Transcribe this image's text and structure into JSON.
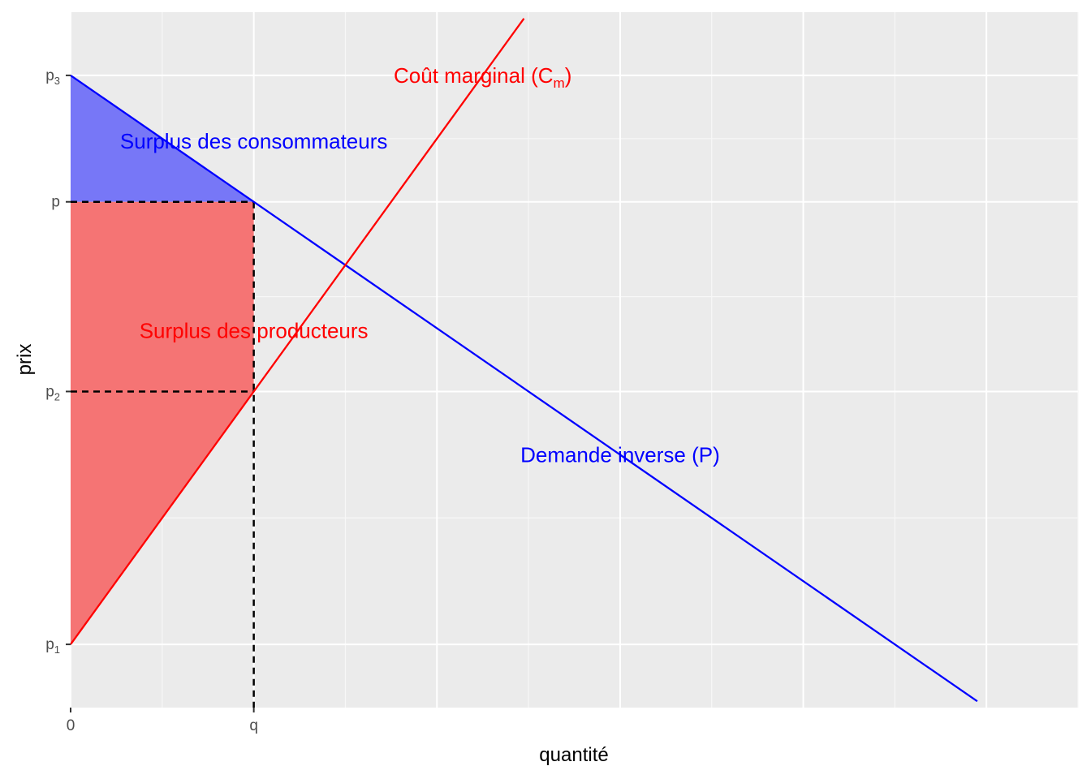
{
  "chart_data": {
    "type": "line",
    "xlabel": "quantité",
    "ylabel": "prix",
    "xlim": [
      0,
      5.5
    ],
    "ylim": [
      -0.5,
      5.0
    ],
    "grid": true,
    "legend": "none",
    "x_ticks": [
      {
        "value": 0,
        "label": "0"
      },
      {
        "value": 1,
        "label": "q"
      }
    ],
    "y_ticks": [
      {
        "value": 0,
        "label": "p",
        "sub": "1"
      },
      {
        "value": 2,
        "label": "p",
        "sub": "2"
      },
      {
        "value": 3.5,
        "label": "p",
        "sub": ""
      },
      {
        "value": 4.5,
        "label": "p",
        "sub": "3"
      }
    ],
    "series": [
      {
        "name": "Demande inverse (P)",
        "color": "#0000FF",
        "x": [
          0,
          4.95
        ],
        "y": [
          4.5,
          -0.45
        ]
      },
      {
        "name": "Coût marginal (C_m)",
        "color": "#FF0000",
        "x": [
          0,
          2.475
        ],
        "y": [
          0,
          4.95
        ]
      }
    ],
    "areas": [
      {
        "label": "Surplus des consommateurs",
        "color": "#7777F7",
        "polygon": [
          [
            0,
            4.5
          ],
          [
            1,
            3.5
          ],
          [
            0,
            3.5
          ]
        ]
      },
      {
        "label": "Surplus des producteurs",
        "color": "#F57474",
        "polygon": [
          [
            0,
            3.5
          ],
          [
            1,
            3.5
          ],
          [
            1,
            2
          ],
          [
            0,
            0
          ]
        ]
      }
    ],
    "guides": [
      {
        "from": [
          0,
          3.5
        ],
        "to": [
          1,
          3.5
        ]
      },
      {
        "from": [
          0,
          2
        ],
        "to": [
          1,
          2
        ]
      },
      {
        "from": [
          1,
          3.5
        ],
        "to": [
          1,
          -0.5
        ]
      }
    ],
    "annotations": [
      {
        "text": "Coût marginal (C",
        "sub": "m",
        "tail": ")",
        "x": 2.25,
        "y": 4.5,
        "color": "#FF0000"
      },
      {
        "text": "Surplus des consommateurs",
        "sub": "",
        "tail": "",
        "x": 1.0,
        "y": 3.98,
        "color": "#0000FF"
      },
      {
        "text": "Surplus des producteurs",
        "sub": "",
        "tail": "",
        "x": 1.0,
        "y": 2.48,
        "color": "#FF0000"
      },
      {
        "text": "Demande inverse (P)",
        "sub": "",
        "tail": "",
        "x": 3.0,
        "y": 1.5,
        "color": "#0000FF"
      }
    ]
  }
}
